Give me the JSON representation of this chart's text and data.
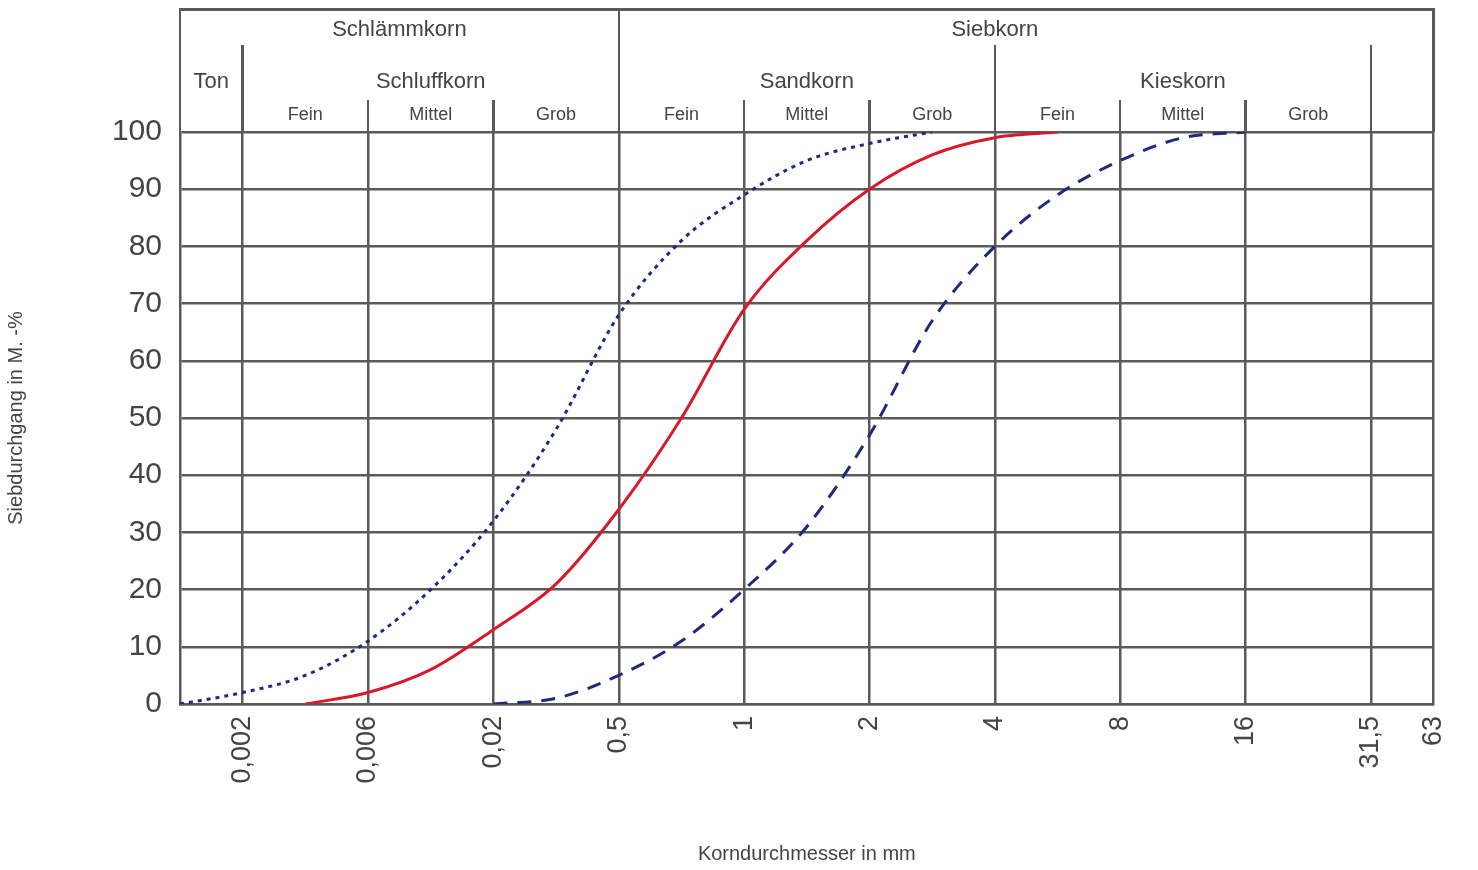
{
  "chart_data": {
    "type": "line",
    "xlabel": "Korndurchmesser in mm",
    "ylabel": "Siebdurchgang in M. -%",
    "categories": [
      null,
      "0,002",
      null,
      "0,006",
      null,
      "0,02",
      null,
      "0,5",
      null,
      "1",
      null,
      "2",
      null,
      "4",
      null,
      "8",
      null,
      "16",
      null,
      "31,5",
      "63"
    ],
    "ylim": [
      0,
      100
    ],
    "yticks": [
      0,
      10,
      20,
      30,
      40,
      50,
      60,
      70,
      80,
      90,
      100
    ],
    "grid": true,
    "annotations": [
      "Schlämmkorn",
      "Siebkorn",
      "Ton",
      "Schluffkorn",
      "Sandkorn",
      "Kieskorn",
      "Fein",
      "Mittel",
      "Grob",
      "Fein",
      "Mittel",
      "Grob",
      "Fein",
      "Mittel",
      "Grob"
    ],
    "series": [
      {
        "color": "#1f2a7a",
        "line_style": "dotted",
        "values": [
          0,
          2,
          5,
          11,
          20,
          32,
          48,
          68,
          81,
          89,
          95,
          98,
          100,
          null,
          null,
          null,
          null,
          null,
          null,
          null,
          null
        ]
      },
      {
        "color": "#d7192b",
        "line_style": "solid",
        "values": [
          null,
          null,
          0,
          2,
          6,
          13,
          21,
          34,
          50,
          69,
          81,
          90,
          96,
          99,
          100,
          null,
          null,
          null,
          null,
          null,
          null
        ]
      },
      {
        "color": "#1f2a7a",
        "line_style": "dashed",
        "values": [
          null,
          null,
          null,
          null,
          null,
          0,
          1,
          5,
          11,
          20,
          31,
          47,
          67,
          80,
          89,
          95,
          99,
          100,
          null,
          null,
          null
        ]
      }
    ]
  }
}
